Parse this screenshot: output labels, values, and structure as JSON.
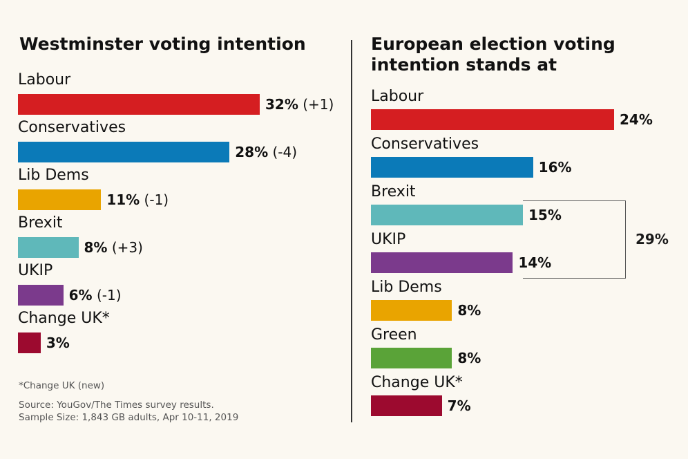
{
  "chart_data": [
    {
      "type": "bar",
      "orientation": "horizontal",
      "title": "Westminster voting intention",
      "xlim": [
        0,
        32
      ],
      "categories": [
        "Labour",
        "Conservatives",
        "Lib Dems",
        "Brexit",
        "UKIP",
        "Change UK*"
      ],
      "values": [
        32,
        28,
        11,
        8,
        6,
        3
      ],
      "value_labels": [
        "32%",
        "28%",
        "11%",
        "8%",
        "6%",
        "3%"
      ],
      "changes": [
        "(+1)",
        "(-4)",
        "(-1)",
        "(+3)",
        "(-1)",
        ""
      ],
      "colors": [
        "#d51e21",
        "#0b7ab8",
        "#e9a400",
        "#5fb8ba",
        "#7b3a8c",
        "#9c0a2f"
      ]
    },
    {
      "type": "bar",
      "orientation": "horizontal",
      "title": "European election voting intention stands at",
      "xlim": [
        0,
        24
      ],
      "categories": [
        "Labour",
        "Conservatives",
        "Brexit",
        "UKIP",
        "Lib Dems",
        "Green",
        "Change UK*"
      ],
      "values": [
        24,
        16,
        15,
        14,
        8,
        8,
        7
      ],
      "value_labels": [
        "24%",
        "16%",
        "15%",
        "14%",
        "8%",
        "8%",
        "7%"
      ],
      "colors": [
        "#d51e21",
        "#0b7ab8",
        "#5fb8ba",
        "#7b3a8c",
        "#e9a400",
        "#5aa338",
        "#9c0a2f"
      ],
      "annotation": {
        "label": "29%",
        "groups": [
          "Brexit",
          "UKIP"
        ]
      }
    }
  ],
  "footnotes": {
    "note": "*Change UK (new)",
    "source": "Source: YouGov/The Times survey results.",
    "sample": "Sample Size: 1,843 GB adults, Apr 10-11, 2019"
  }
}
